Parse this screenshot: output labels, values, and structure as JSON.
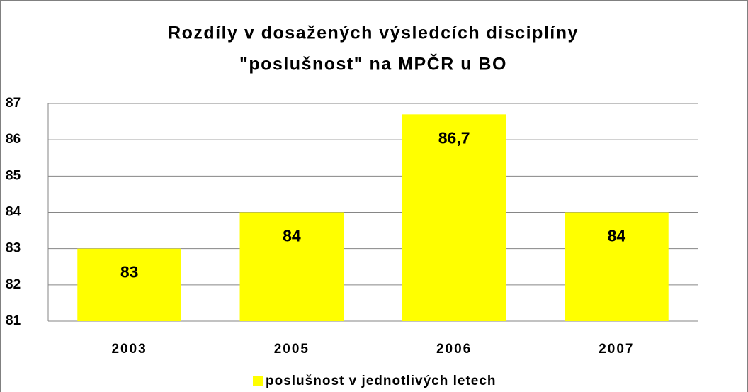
{
  "chart_data": {
    "type": "bar",
    "title": [
      "Rozdíly v dosažených výsledcích disciplíny",
      "\"poslušnost\" na MPČR u BO"
    ],
    "categories": [
      "2003",
      "2005",
      "2006",
      "2007"
    ],
    "series": [
      {
        "name": "poslušnost v jednotlivých letech",
        "color": "#ffff00",
        "values": [
          83,
          84,
          86.7,
          84
        ],
        "value_labels": [
          "83",
          "84",
          "86,7",
          "84"
        ]
      }
    ],
    "ylim": [
      81,
      87
    ],
    "yticks": [
      81,
      82,
      83,
      84,
      85,
      86,
      87
    ],
    "grid": true,
    "legend": "bottom"
  }
}
